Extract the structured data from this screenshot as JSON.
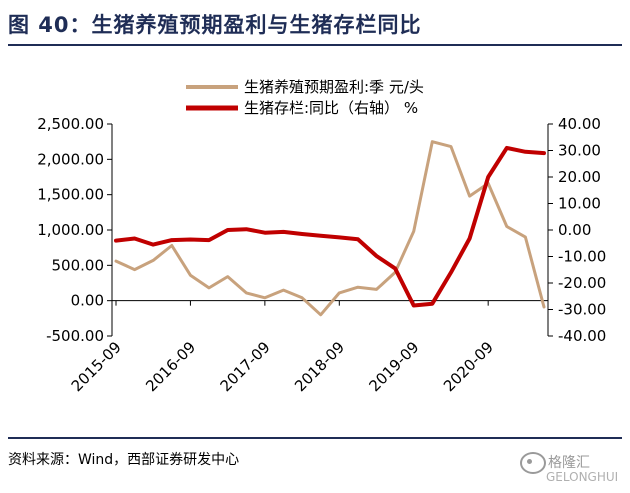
{
  "figure": {
    "title": "图 40：生猪养殖预期盈利与生猪存栏同比",
    "source": "资料来源：Wind，西部证券研发中心"
  },
  "watermark": {
    "text": "格隆汇",
    "sub": "GELONGHUI"
  },
  "chart_data": {
    "type": "line",
    "title": "图 40：生猪养殖预期盈利与生猪存栏同比",
    "x_ticks": [
      "2015-09",
      "2016-09",
      "2017-09",
      "2018-09",
      "2019-09",
      "2020-09"
    ],
    "x_range": [
      "2015-09",
      "2021-06"
    ],
    "y_left": {
      "range": [
        -500,
        2500
      ],
      "ticks": [
        -500,
        0,
        500,
        1000,
        1500,
        2000,
        2500
      ],
      "tick_labels": [
        "-500.00",
        "0.00",
        "500.00",
        "1,000.00",
        "1,500.00",
        "2,000.00",
        "2,500.00"
      ]
    },
    "y_right": {
      "range": [
        -40,
        40
      ],
      "ticks": [
        -40,
        -30,
        -20,
        -10,
        0,
        10,
        20,
        30,
        40
      ],
      "tick_labels": [
        "-40.00",
        "-30.00",
        "-20.00",
        "-10.00",
        "0.00",
        "10.00",
        "20.00",
        "30.00",
        "40.00"
      ]
    },
    "grid": false,
    "legend_position": "top-center",
    "series": [
      {
        "name": "生猪养殖预期盈利:季 元/头",
        "axis": "left",
        "color": "#c8a27d",
        "points": [
          [
            "2015-09",
            560
          ],
          [
            "2015-12",
            440
          ],
          [
            "2016-03",
            570
          ],
          [
            "2016-06",
            780
          ],
          [
            "2016-09",
            360
          ],
          [
            "2016-12",
            180
          ],
          [
            "2017-03",
            340
          ],
          [
            "2017-06",
            110
          ],
          [
            "2017-09",
            40
          ],
          [
            "2017-12",
            150
          ],
          [
            "2018-03",
            40
          ],
          [
            "2018-06",
            -200
          ],
          [
            "2018-09",
            110
          ],
          [
            "2018-12",
            190
          ],
          [
            "2019-03",
            160
          ],
          [
            "2019-06",
            400
          ],
          [
            "2019-09",
            980
          ],
          [
            "2019-12",
            2250
          ],
          [
            "2020-03",
            2180
          ],
          [
            "2020-06",
            1480
          ],
          [
            "2020-09",
            1660
          ],
          [
            "2020-12",
            1050
          ],
          [
            "2021-03",
            900
          ],
          [
            "2021-06",
            -90
          ]
        ]
      },
      {
        "name": "生猪存栏:同比（右轴） %",
        "axis": "right",
        "color": "#c00000",
        "points": [
          [
            "2015-09",
            -4
          ],
          [
            "2015-12",
            -3.2
          ],
          [
            "2016-03",
            -5.5
          ],
          [
            "2016-06",
            -3.8
          ],
          [
            "2016-09",
            -3.6
          ],
          [
            "2016-12",
            -3.8
          ],
          [
            "2017-03",
            0
          ],
          [
            "2017-06",
            0.3
          ],
          [
            "2017-09",
            -1
          ],
          [
            "2017-12",
            -0.7
          ],
          [
            "2018-03",
            -1.5
          ],
          [
            "2018-06",
            -2.2
          ],
          [
            "2018-09",
            -2.8
          ],
          [
            "2018-12",
            -3.5
          ],
          [
            "2019-03",
            -9.8
          ],
          [
            "2019-06",
            -14.5
          ],
          [
            "2019-09",
            -28.5
          ],
          [
            "2019-12",
            -27.8
          ],
          [
            "2020-03",
            -16
          ],
          [
            "2020-06",
            -3.2
          ],
          [
            "2020-09",
            20
          ],
          [
            "2020-12",
            31
          ],
          [
            "2021-03",
            29.5
          ],
          [
            "2021-06",
            29
          ]
        ]
      }
    ]
  }
}
